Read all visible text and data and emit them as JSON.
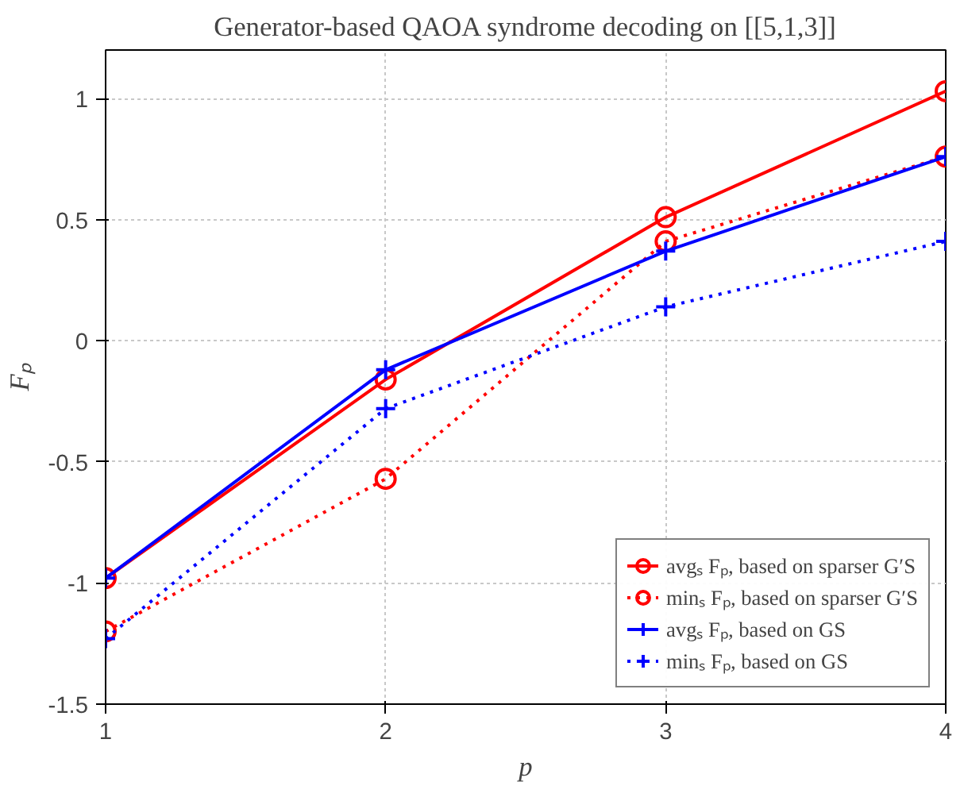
{
  "chart_data": {
    "type": "line",
    "title": "Generator-based QAOA syndrome decoding on [[5,1,3]]",
    "xlabel": "p",
    "ylabel": "Fₚ",
    "x": [
      1,
      2,
      3,
      4
    ],
    "xlim": [
      1,
      4
    ],
    "xticks": [
      1,
      2,
      3,
      4
    ],
    "ylim": [
      -1.5,
      1.2
    ],
    "yticks": [
      -1.5,
      -1,
      -0.5,
      0,
      0.5,
      1
    ],
    "grid": true,
    "legend": "bottom right",
    "series": [
      {
        "name": "avgₛ Fₚ, based on sparser G′S",
        "color": "#ff0000",
        "marker": "circle",
        "line_style": "solid",
        "values": [
          -0.98,
          -0.16,
          0.51,
          1.03
        ]
      },
      {
        "name": "minₛ Fₚ, based on sparser G′S",
        "color": "#ff0000",
        "marker": "circle",
        "line_style": "dotted",
        "values": [
          -1.2,
          -0.57,
          0.41,
          0.76
        ]
      },
      {
        "name": "avgₛ Fₚ, based on GS",
        "color": "#0000ff",
        "marker": "cross",
        "line_style": "solid",
        "values": [
          -0.98,
          -0.12,
          0.37,
          0.76
        ]
      },
      {
        "name": "minₛ Fₚ, based on GS",
        "color": "#0000ff",
        "marker": "cross",
        "line_style": "dotted",
        "values": [
          -1.23,
          -0.28,
          0.14,
          0.41
        ]
      }
    ]
  }
}
